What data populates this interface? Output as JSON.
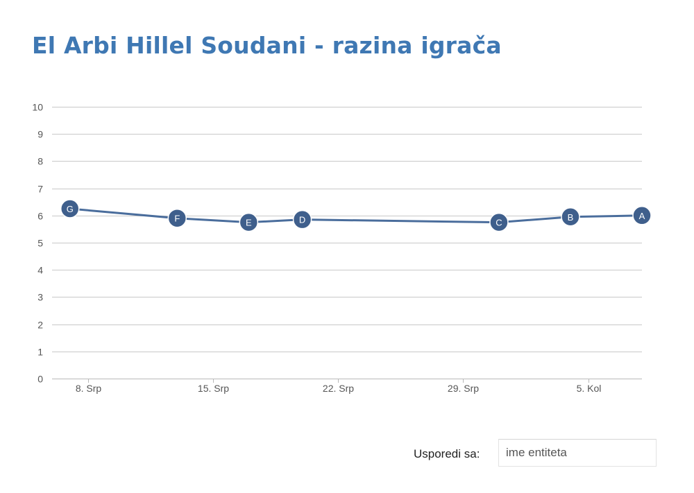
{
  "title": "El Arbi Hillel Soudani - razina igrača",
  "chart_data": {
    "type": "line",
    "title": "El Arbi Hillel Soudani - razina igrača",
    "xlabel": "",
    "ylabel": "",
    "ylim": [
      0,
      10
    ],
    "yticks": [
      0,
      1,
      2,
      3,
      4,
      5,
      6,
      7,
      8,
      9,
      10
    ],
    "xlim": [
      "2014-08-06",
      "2014-09-08"
    ],
    "xticks": [
      {
        "date": "2014-08-08",
        "label": "8. Srp"
      },
      {
        "date": "2014-08-15",
        "label": "15. Srp"
      },
      {
        "date": "2014-08-22",
        "label": "22. Srp"
      },
      {
        "date": "2014-08-29",
        "label": "29. Srp"
      },
      {
        "date": "2014-09-05",
        "label": "5. Kol"
      }
    ],
    "grid": true,
    "series": [
      {
        "points": [
          {
            "date": "2014-08-07",
            "value": 6.25,
            "label": "G"
          },
          {
            "date": "2014-08-13",
            "value": 5.9,
            "label": "F"
          },
          {
            "date": "2014-08-17",
            "value": 5.75,
            "label": "E"
          },
          {
            "date": "2014-08-20",
            "value": 5.85,
            "label": "D"
          },
          {
            "date": "2014-08-31",
            "value": 5.75,
            "label": "C"
          },
          {
            "date": "2014-09-04",
            "value": 5.95,
            "label": "B"
          },
          {
            "date": "2014-09-08",
            "value": 6.0,
            "label": "A"
          }
        ]
      }
    ],
    "colors": {
      "line": "#4a6d9c",
      "marker": "#3f5f8c",
      "marker_text": "#ffffff",
      "grid": "#c8c8c8",
      "axis_text": "#555555"
    }
  },
  "compare": {
    "label": "Usporedi sa:",
    "placeholder": "ime entiteta"
  }
}
